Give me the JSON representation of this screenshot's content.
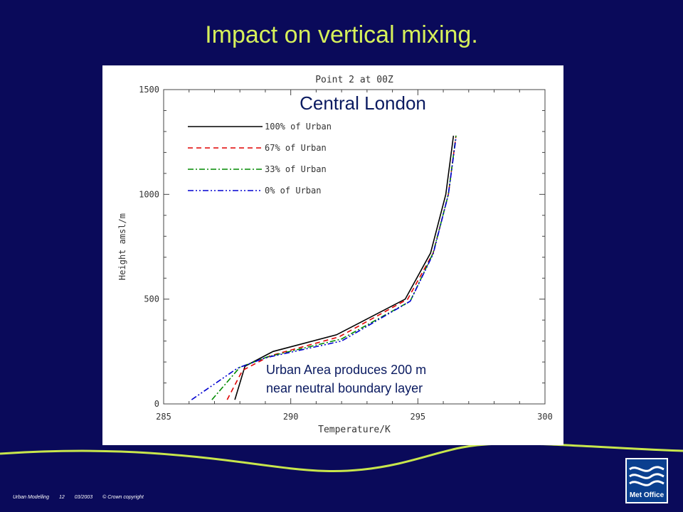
{
  "slide": {
    "title": "Impact on vertical mixing."
  },
  "footer": {
    "text1": "Urban Modelling",
    "page": "12",
    "date": "03/2003",
    "copyright": "© Crown copyright"
  },
  "logo": {
    "text": "Met Office",
    "icon": "wave-stripes-icon"
  },
  "colors": {
    "background": "#0a0a5a",
    "title": "#d6f05a",
    "wave": "#c8e64c"
  },
  "chart_data": {
    "type": "line",
    "title": "Point 2 at 00Z",
    "subtitle": "Central London",
    "xlabel": "Temperature/K",
    "ylabel": "Height amsl/m",
    "xlim": [
      285,
      300
    ],
    "ylim": [
      0,
      1500
    ],
    "xticks": [
      "285",
      "290",
      "295",
      "300"
    ],
    "yticks": [
      "0",
      "500",
      "1000",
      "1500"
    ],
    "legend_position": "top-left",
    "annotation": [
      "Urban Area produces  200 m",
      "near neutral boundary layer"
    ],
    "series": [
      {
        "name": "100% of Urban",
        "color": "#000000",
        "dash": "solid",
        "x": [
          287.8,
          288.2,
          289.3,
          291.8,
          294.5,
          295.5,
          296.1,
          296.4
        ],
        "y": [
          20,
          180,
          250,
          330,
          500,
          720,
          1000,
          1280
        ]
      },
      {
        "name": "67% of Urban",
        "color": "#e00000",
        "dash": "dashed",
        "x": [
          287.5,
          288.1,
          289.2,
          291.9,
          294.6,
          295.6,
          296.2,
          296.5
        ],
        "y": [
          20,
          160,
          230,
          320,
          500,
          720,
          1000,
          1280
        ]
      },
      {
        "name": "33% of Urban",
        "color": "#008a00",
        "dash": "dashdot",
        "x": [
          286.9,
          288.0,
          289.1,
          292.0,
          294.7,
          295.6,
          296.2,
          296.5
        ],
        "y": [
          20,
          175,
          225,
          310,
          490,
          720,
          1000,
          1280
        ]
      },
      {
        "name": "0% of Urban",
        "color": "#0000d0",
        "dash": "dashdotdot",
        "x": [
          286.1,
          287.9,
          289.0,
          292.0,
          294.7,
          295.6,
          296.2,
          296.5
        ],
        "y": [
          20,
          170,
          220,
          300,
          490,
          715,
          1000,
          1270
        ]
      }
    ]
  }
}
